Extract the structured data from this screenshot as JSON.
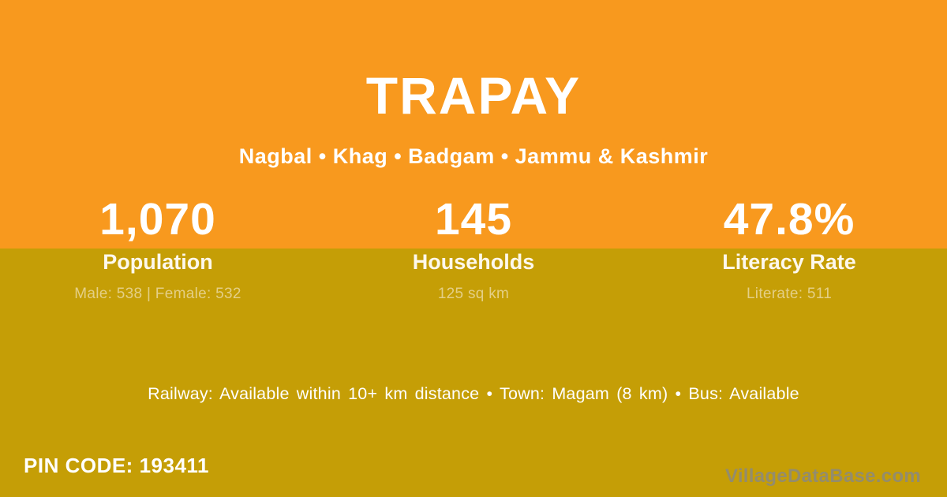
{
  "card": {
    "title": "TRAPAY",
    "subtitle": "Nagbal • Khag • Badgam • Jammu & Kashmir",
    "stats": [
      {
        "value": "1,070",
        "label": "Population",
        "detail": "Male: 538 | Female: 532"
      },
      {
        "value": "145",
        "label": "Households",
        "detail": "125 sq km"
      },
      {
        "value": "47.8%",
        "label": "Literacy Rate",
        "detail": "Literate: 511"
      }
    ],
    "transport_line": "Railway: Available within 10+ km distance • Town: Magam (8 km) • Bus: Available",
    "pin_label": "PIN CODE:",
    "pin_value": "193411",
    "watermark": "VillageDataBase.com",
    "colors": {
      "top_band": "#F8991E",
      "bottom_band": "#C59E06",
      "primary_text": "#FFFFFF",
      "muted_detail_text": "#E4CF87",
      "watermark_text": "#8B8A80"
    }
  }
}
